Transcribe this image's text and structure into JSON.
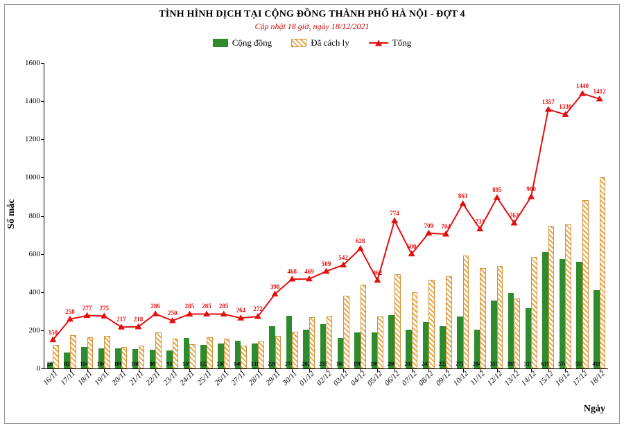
{
  "title": "TÌNH HÌNH DỊCH TẠI CỘNG ĐỒNG THÀNH PHỐ HÀ NỘI - ĐỢT 4",
  "subtitle": "Cập nhật 18 giờ, ngày 18/12/2021",
  "legend": {
    "series1": "Cộng đồng",
    "series2": "Đã cách ly",
    "series3": "Tổng"
  },
  "axes": {
    "ylabel": "Số mắc",
    "xlabel": "Ngày",
    "ylim": [
      0,
      1600
    ],
    "ytick_step": 200,
    "label_fontsize": 14,
    "tick_fontsize": 11
  },
  "colors": {
    "bar_green": "#2e8b2e",
    "bar_hatch_line": "#e6a84a",
    "bar_hatch_border": "#d4923a",
    "line_red": "#e30e0e",
    "title": "#000000",
    "subtitle": "#d00000",
    "background": "#ffffff",
    "axis": "#000000"
  },
  "chart": {
    "type": "bar+line",
    "categories": [
      "16/11",
      "17/11",
      "18/11",
      "19/11",
      "20/11",
      "21/11",
      "22/11",
      "23/11",
      "24/11",
      "25/11",
      "26/11",
      "27/11",
      "28/11",
      "29/11",
      "30/11",
      "01/12",
      "02/12",
      "03/12",
      "04/12",
      "05/12",
      "06/12",
      "07/12",
      "08/12",
      "09/12",
      "10/12",
      "11/12",
      "12/12",
      "13/12",
      "14/12",
      "15/12",
      "16/12",
      "17/12",
      "18/12"
    ],
    "series_green": [
      28,
      82,
      114,
      104,
      106,
      100,
      98,
      95,
      159,
      122,
      130,
      146,
      131,
      220,
      274,
      202,
      233,
      161,
      190,
      189,
      280,
      202,
      243,
      222,
      272,
      204,
      357,
      395,
      315,
      611,
      574,
      557,
      411
    ],
    "series_hatch": [
      122,
      176,
      163,
      171,
      111,
      118,
      188,
      155,
      126,
      163,
      155,
      118,
      141,
      170,
      194,
      267,
      276,
      381,
      438,
      273,
      494,
      398,
      466,
      482,
      591,
      527,
      538,
      367,
      585,
      746,
      756,
      883,
      1001
    ],
    "series_line": [
      150,
      258,
      277,
      275,
      217,
      218,
      286,
      250,
      285,
      285,
      285,
      264,
      272,
      390,
      468,
      469,
      509,
      542,
      628,
      462,
      774,
      600,
      709,
      704,
      863,
      731,
      895,
      762,
      900,
      1357,
      1330,
      1440,
      1412
    ],
    "bar_width_rel": 0.35,
    "marker": "triangle",
    "line_width": 2
  }
}
